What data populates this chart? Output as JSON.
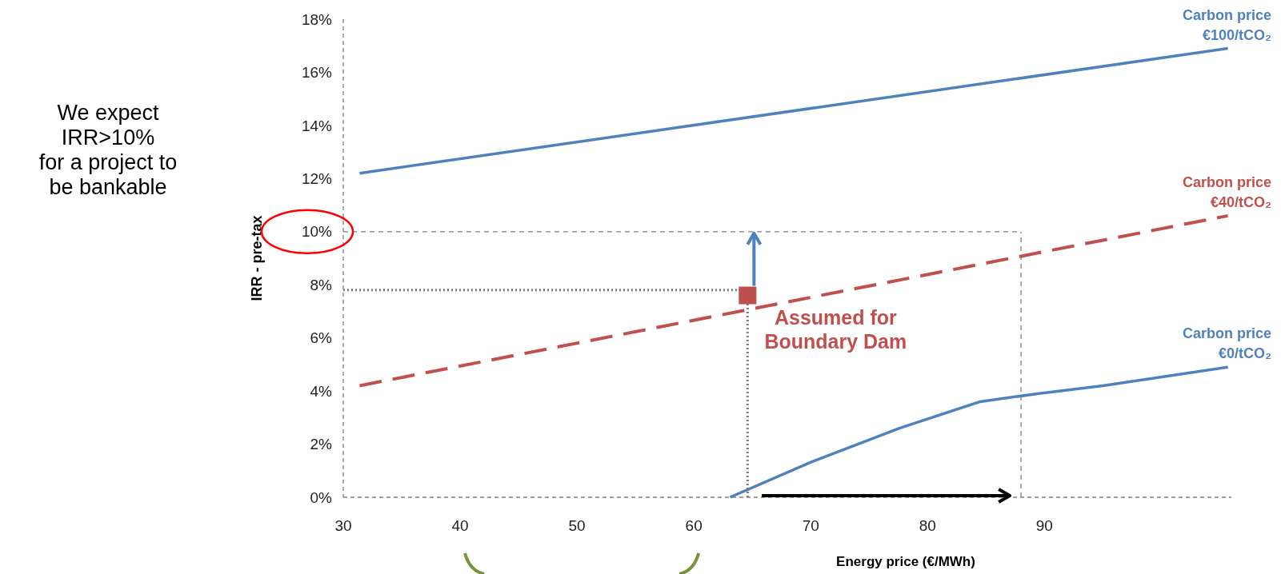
{
  "chart_data": {
    "type": "line",
    "xlabel": "Energy price (€/MWh)",
    "ylabel": "IRR - pre-tax",
    "xlim": [
      30,
      106
    ],
    "xticks": [
      30,
      40,
      50,
      60,
      70,
      80,
      90
    ],
    "ylim": [
      0,
      18
    ],
    "yticks": [
      {
        "value": 0,
        "label": "0%"
      },
      {
        "value": 2,
        "label": "2%"
      },
      {
        "value": 4,
        "label": "4%"
      },
      {
        "value": 6,
        "label": "6%"
      },
      {
        "value": 8,
        "label": "8%"
      },
      {
        "value": 10,
        "label": "10%"
      },
      {
        "value": 12,
        "label": "12%"
      },
      {
        "value": 14,
        "label": "14%"
      },
      {
        "value": 16,
        "label": "16%"
      },
      {
        "value": 18,
        "label": "18%"
      }
    ],
    "grid": false,
    "series": [
      {
        "name": "Carbon price €100/tCO₂",
        "color": "#4f81bd",
        "x": [
          31.4,
          105.7
        ],
        "values": [
          12.2,
          16.9
        ]
      },
      {
        "name": "Carbon price €40/tCO₂",
        "color": "#c0504d",
        "line_style": "dashed",
        "x": [
          31.4,
          105.7
        ],
        "values": [
          4.2,
          10.6
        ]
      },
      {
        "name": "Carbon price €0/tCO₂",
        "color": "#4f81bd",
        "x": [
          63.1,
          69.9,
          77.6,
          84.5,
          89.4,
          95,
          105.7
        ],
        "values": [
          0,
          1.3,
          2.6,
          3.6,
          3.9,
          4.2,
          4.9
        ]
      },
      {
        "type": "scatter",
        "marker": "square",
        "color": "#c0504d",
        "x": [
          64.6
        ],
        "values": [
          7.6
        ]
      }
    ],
    "ref_lines": [
      {
        "axis": "y",
        "value": 10,
        "line_style": "dashed",
        "color": "#7f7f7f"
      },
      {
        "axis": "x",
        "value": 88,
        "line_style": "dashed",
        "color": "#7f7f7f"
      },
      {
        "axis": "y",
        "value": 7.8,
        "line_style": "dotted",
        "color": "#7f7f7f"
      },
      {
        "axis": "x",
        "value": 64.6,
        "line_style": "dotted",
        "color": "#7f7f7f"
      }
    ],
    "annotations": [
      "We expect\nIRR>10%\nfor a project to\nbe bankable",
      {
        "text": "Assumed for Boundary Dam",
        "x": 64.6,
        "y": 7.6
      }
    ]
  }
}
